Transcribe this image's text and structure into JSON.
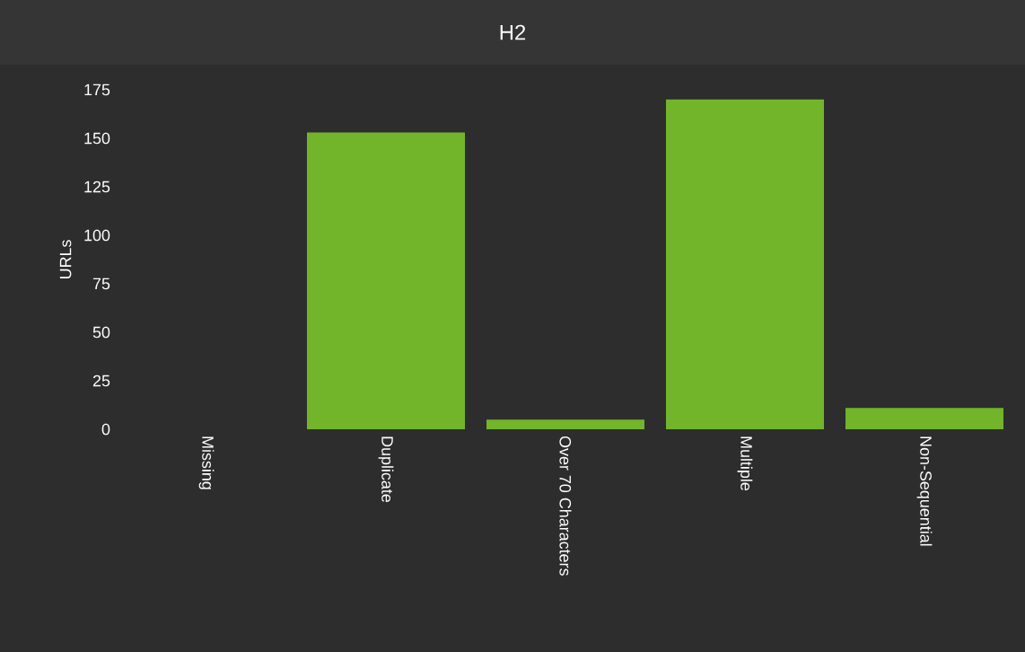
{
  "chart_data": {
    "type": "bar",
    "title": "H2",
    "ylabel": "URLs",
    "categories": [
      "Missing",
      "Duplicate",
      "Over 70 Characters",
      "Multiple",
      "Non-Sequential"
    ],
    "values": [
      0,
      153,
      5,
      170,
      11
    ],
    "color": "#72b42a",
    "ylim": [
      0,
      175
    ],
    "yticks": [
      0,
      25,
      50,
      75,
      100,
      125,
      150,
      175
    ],
    "grid": false
  }
}
